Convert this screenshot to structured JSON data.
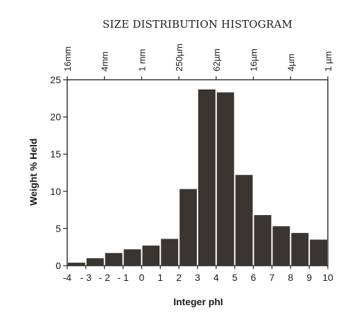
{
  "chart_data": {
    "type": "bar",
    "title": "SIZE DISTRIBUTION HISTOGRAM",
    "xlabel": "Integer phI",
    "ylabel": "Weight % Held",
    "xlim": [
      -4,
      10
    ],
    "ylim": [
      0,
      25
    ],
    "x_ticks": [
      -4,
      -3,
      -2,
      -1,
      0,
      1,
      2,
      3,
      4,
      5,
      6,
      7,
      8,
      9,
      10
    ],
    "x_tick_labels": [
      "-4",
      "- 3",
      "- 2",
      "- 1",
      "0",
      "1",
      "2",
      "3",
      "4",
      "5",
      "6",
      "7",
      "8",
      "9",
      "10"
    ],
    "y_ticks": [
      0,
      5,
      10,
      15,
      20,
      25
    ],
    "y_tick_labels": [
      "0",
      "5",
      "10",
      "15",
      "20",
      "25"
    ],
    "top_axis_ticks": [
      {
        "phi": -4,
        "label": "16mm"
      },
      {
        "phi": -2,
        "label": "4mm"
      },
      {
        "phi": 0,
        "label": "1 mm"
      },
      {
        "phi": 2,
        "label": "250µm"
      },
      {
        "phi": 4,
        "label": "62µm"
      },
      {
        "phi": 6,
        "label": "16µm"
      },
      {
        "phi": 8,
        "label": "4µm"
      },
      {
        "phi": 10,
        "label": "1 µm"
      }
    ],
    "bars": [
      {
        "x0": -4,
        "x1": -3,
        "value": 0.4
      },
      {
        "x0": -3,
        "x1": -2,
        "value": 1.0
      },
      {
        "x0": -2,
        "x1": -1,
        "value": 1.7
      },
      {
        "x0": -1,
        "x1": 0,
        "value": 2.2
      },
      {
        "x0": 0,
        "x1": 1,
        "value": 2.7
      },
      {
        "x0": 1,
        "x1": 2,
        "value": 3.6
      },
      {
        "x0": 2,
        "x1": 3,
        "value": 10.3
      },
      {
        "x0": 3,
        "x1": 4,
        "value": 23.7
      },
      {
        "x0": 4,
        "x1": 5,
        "value": 23.3
      },
      {
        "x0": 5,
        "x1": 6,
        "value": 12.2
      },
      {
        "x0": 6,
        "x1": 7,
        "value": 6.8
      },
      {
        "x0": 7,
        "x1": 8,
        "value": 5.3
      },
      {
        "x0": 8,
        "x1": 9,
        "value": 4.4
      },
      {
        "x0": 9,
        "x1": 10,
        "value": 3.5
      }
    ],
    "bar_color": "#3a3530",
    "grid": false,
    "legend": "none"
  }
}
